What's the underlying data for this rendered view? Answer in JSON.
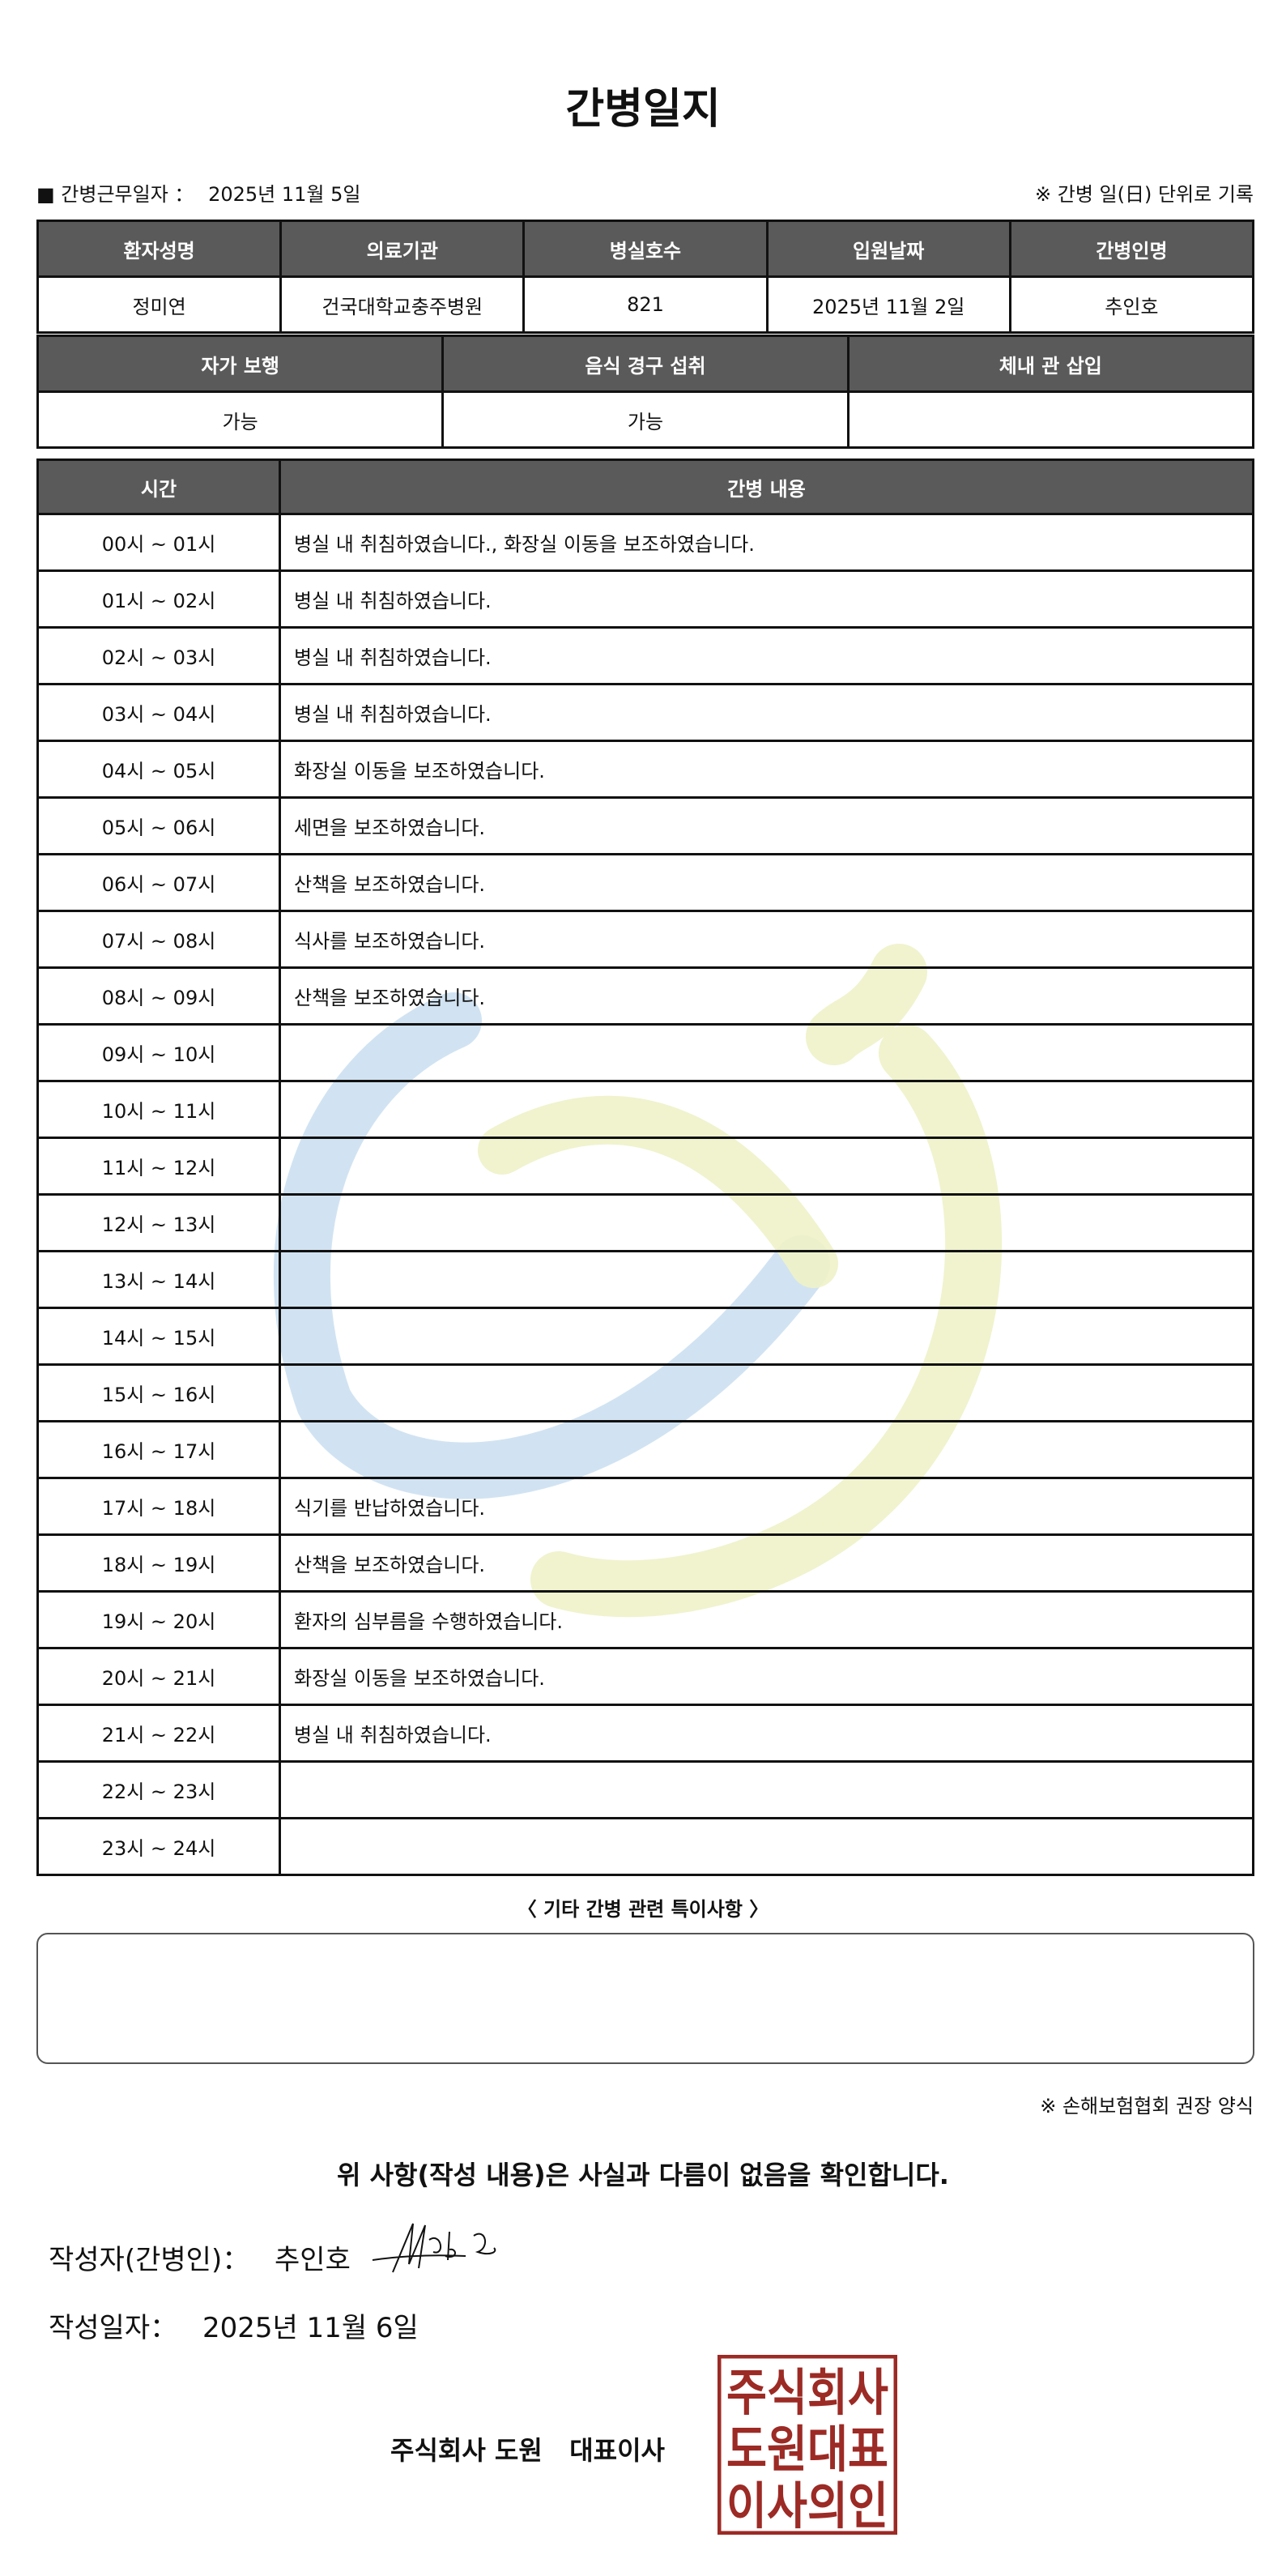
{
  "title": "간병일지",
  "work_date_label": "■ 간병근무일자 ：",
  "work_date": "2025년 11월 5일",
  "record_unit_note": "※ 간병 일(日) 단위로 기록",
  "patient_table": {
    "headers": [
      "환자성명",
      "의료기관",
      "병실호수",
      "입원날짜",
      "간병인명"
    ],
    "values": [
      "정미연",
      "건국대학교충주병원",
      "821",
      "2025년 11월 2일",
      "추인호"
    ]
  },
  "status_table": {
    "headers": [
      "자가 보행",
      "음식 경구 섭취",
      "체내 관 삽입"
    ],
    "values": [
      "가능",
      "가능",
      ""
    ]
  },
  "log_table": {
    "headers": [
      "시간",
      "간병 내용"
    ],
    "rows": [
      {
        "time": "00시 ~ 01시",
        "content": "병실 내 취침하였습니다., 화장실 이동을 보조하였습니다."
      },
      {
        "time": "01시 ~ 02시",
        "content": "병실 내 취침하였습니다."
      },
      {
        "time": "02시 ~ 03시",
        "content": "병실 내 취침하였습니다."
      },
      {
        "time": "03시 ~ 04시",
        "content": "병실 내 취침하였습니다."
      },
      {
        "time": "04시 ~ 05시",
        "content": "화장실 이동을 보조하였습니다."
      },
      {
        "time": "05시 ~ 06시",
        "content": "세면을 보조하였습니다."
      },
      {
        "time": "06시 ~ 07시",
        "content": "산책을 보조하였습니다."
      },
      {
        "time": "07시 ~ 08시",
        "content": "식사를 보조하였습니다."
      },
      {
        "time": "08시 ~ 09시",
        "content": "산책을 보조하였습니다."
      },
      {
        "time": "09시 ~ 10시",
        "content": ""
      },
      {
        "time": "10시 ~ 11시",
        "content": ""
      },
      {
        "time": "11시 ~ 12시",
        "content": ""
      },
      {
        "time": "12시 ~ 13시",
        "content": ""
      },
      {
        "time": "13시 ~ 14시",
        "content": ""
      },
      {
        "time": "14시 ~ 15시",
        "content": ""
      },
      {
        "time": "15시 ~ 16시",
        "content": ""
      },
      {
        "time": "16시 ~ 17시",
        "content": ""
      },
      {
        "time": "17시 ~ 18시",
        "content": "식기를 반납하였습니다."
      },
      {
        "time": "18시 ~ 19시",
        "content": "산책을 보조하였습니다."
      },
      {
        "time": "19시 ~ 20시",
        "content": "환자의 심부름을 수행하였습니다."
      },
      {
        "time": "20시 ~ 21시",
        "content": "화장실 이동을 보조하였습니다."
      },
      {
        "time": "21시 ~ 22시",
        "content": "병실 내 취침하였습니다."
      },
      {
        "time": "22시 ~ 23시",
        "content": ""
      },
      {
        "time": "23시 ~ 24시",
        "content": ""
      }
    ]
  },
  "notes_label": "〈 기타 간병 관련 특이사항 〉",
  "notes_text": "",
  "form_note": "※ 손해보험협회 권장 양식",
  "statement": "위 사항(작성 내용)은 사실과 다름이 없음을 확인합니다.",
  "writer_label": "작성자(간병인)：",
  "writer_name": "추인호",
  "written_date_label": "작성일자：",
  "written_date": "2025년 11월 6일",
  "company": "주식회사 도원   대표이사",
  "stamp_text": "주식회사도원대표이사의인",
  "colors": {
    "header_bg": "#5a5a5a",
    "stamp": "#9c2a25",
    "watermark_blue": "#c9def0",
    "watermark_yellow": "#eef2c8"
  }
}
